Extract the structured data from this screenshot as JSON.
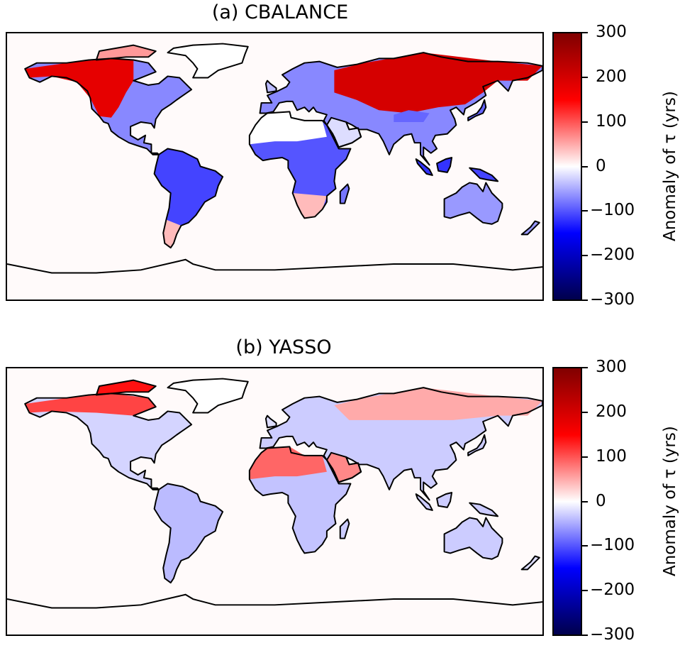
{
  "colormap": {
    "name": "seismic",
    "stops": [
      "#00004c",
      "#0000ff",
      "#ffffff",
      "#ff0000",
      "#800000"
    ]
  },
  "colorbar": {
    "label": "Anomaly of τ (yrs)",
    "ticks": [
      "300",
      "200",
      "100",
      "0",
      "−100",
      "−200",
      "−300"
    ],
    "range": [
      -300,
      300
    ]
  },
  "panels": [
    {
      "title": "(a) CBALANCE",
      "regions": [
        {
          "region": "North America (north/west)",
          "anomaly": 180
        },
        {
          "region": "Eastern North America",
          "anomaly": -80
        },
        {
          "region": "Central America",
          "anomaly": -70
        },
        {
          "region": "South America",
          "anomaly": -110
        },
        {
          "region": "Patagonia",
          "anomaly": 60
        },
        {
          "region": "Sahara",
          "anomaly": 0
        },
        {
          "region": "Africa (tropical)",
          "anomaly": -100
        },
        {
          "region": "Southern Africa",
          "anomaly": 40
        },
        {
          "region": "Europe",
          "anomaly": -60
        },
        {
          "region": "Siberia / Central Asia",
          "anomaly": 200
        },
        {
          "region": "Tibetan Plateau",
          "anomaly": -90
        },
        {
          "region": "South-East Asia",
          "anomaly": -110
        },
        {
          "region": "Australia",
          "anomaly": -60
        }
      ]
    },
    {
      "title": "(b) YASSO",
      "regions": [
        {
          "region": "Canadian Arctic",
          "anomaly": 140
        },
        {
          "region": "North America",
          "anomaly": -25
        },
        {
          "region": "South America",
          "anomaly": -40
        },
        {
          "region": "Sahara / Arabia",
          "anomaly": 90
        },
        {
          "region": "Africa (tropical)",
          "anomaly": -35
        },
        {
          "region": "Europe",
          "anomaly": -30
        },
        {
          "region": "Siberia",
          "anomaly": 50
        },
        {
          "region": "South-East Asia",
          "anomaly": -30
        },
        {
          "region": "Australia",
          "anomaly": -30
        }
      ]
    }
  ]
}
